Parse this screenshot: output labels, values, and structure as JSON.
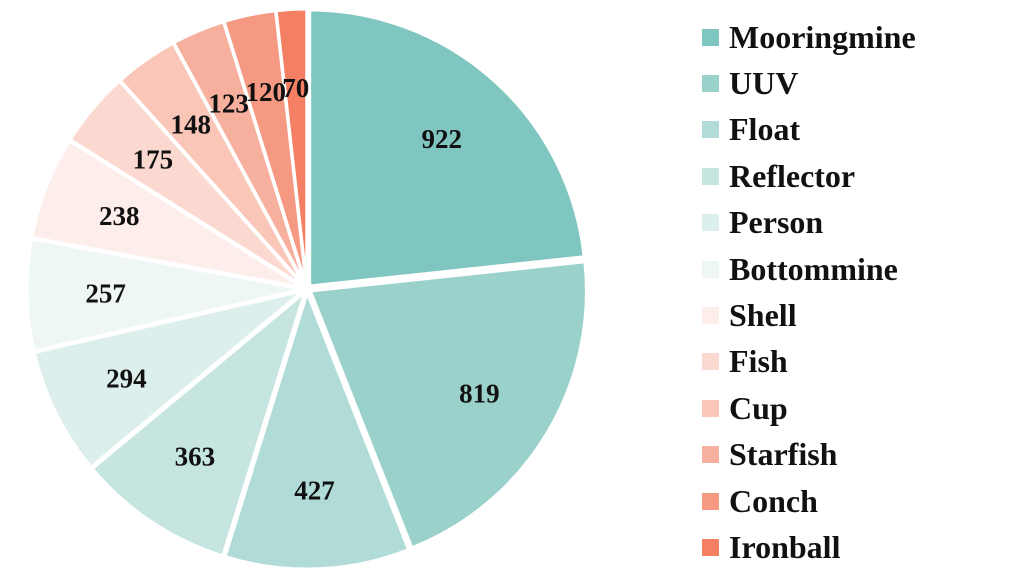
{
  "chart_data": {
    "type": "pie",
    "title": "",
    "start_angle": "12 o'clock",
    "direction": "clockwise",
    "legend_position": "right",
    "slices": [
      {
        "label": "Mooringmine",
        "value": 922,
        "color": "#80c6c0"
      },
      {
        "label": "UUV",
        "value": 819,
        "color": "#9ad1cb"
      },
      {
        "label": "Float",
        "value": 427,
        "color": "#b0dbd6"
      },
      {
        "label": "Reflector",
        "value": 363,
        "color": "#c6e5e1"
      },
      {
        "label": "Person",
        "value": 294,
        "color": "#dcefec"
      },
      {
        "label": "Bottommine",
        "value": 257,
        "color": "#eff7f6"
      },
      {
        "label": "Shell",
        "value": 238,
        "color": "#fdeeeb"
      },
      {
        "label": "Fish",
        "value": 175,
        "color": "#fbd9d0"
      },
      {
        "label": "Cup",
        "value": 148,
        "color": "#f9c6b8"
      },
      {
        "label": "Starfish",
        "value": 123,
        "color": "#f7b09d"
      },
      {
        "label": "Conch",
        "value": 120,
        "color": "#f59982"
      },
      {
        "label": "Ironball",
        "value": 70,
        "color": "#f47f62"
      }
    ]
  }
}
